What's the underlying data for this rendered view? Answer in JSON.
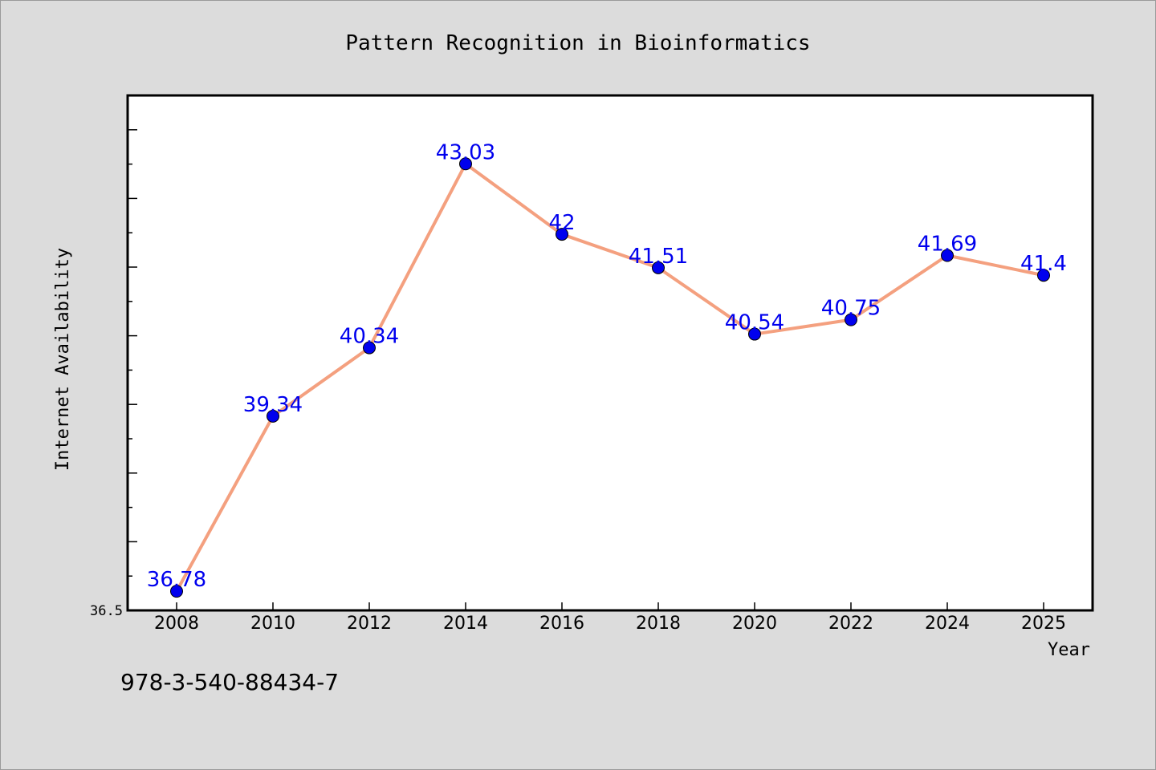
{
  "chart_data": {
    "type": "line",
    "title": "Pattern Recognition in Bioinformatics",
    "xlabel": "Year",
    "ylabel": "Internet Availability",
    "categories": [
      "2008",
      "2010",
      "2012",
      "2014",
      "2016",
      "2018",
      "2020",
      "2022",
      "2024",
      "2025"
    ],
    "series": [
      {
        "values": [
          36.78,
          39.34,
          40.34,
          43.03,
          42,
          41.51,
          40.54,
          40.75,
          41.69,
          41.4
        ],
        "labels": [
          "36.78",
          "39.34",
          "40.34",
          "43.03",
          "42",
          "41.51",
          "40.54",
          "40.75",
          "41.69",
          "41.4"
        ],
        "line_color": "#f4a07f",
        "marker_color": "#0000ee"
      }
    ],
    "yticks": [
      "36.5"
    ],
    "ylim": [
      36.5,
      44.03
    ],
    "grid": false,
    "legend": "none",
    "label_color": "#0000ee"
  },
  "footer_text": "978-3-540-88434-7"
}
